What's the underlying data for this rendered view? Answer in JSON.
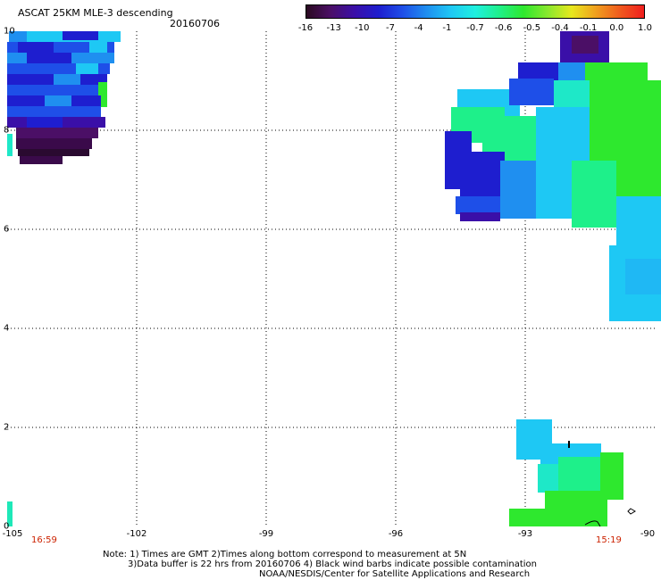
{
  "header": {
    "title": "ASCAT 25KM MLE-3 descending",
    "date": "20160706"
  },
  "colorbar": {
    "labels": [
      "-16",
      "-13",
      "-10",
      "-7",
      "-4",
      "-1",
      "-0.7",
      "-0.6",
      "-0.5",
      "-0.4",
      "-0.1",
      "0.0",
      "1.0"
    ],
    "colors": [
      "#2a0a20",
      "#4b0f66",
      "#3a0fa8",
      "#1e1ecf",
      "#1f4fe8",
      "#1f8ff0",
      "#1fc8f4",
      "#1ff0e0",
      "#1ff08a",
      "#2ee82e",
      "#88e82e",
      "#e8e81e",
      "#f0a01e",
      "#f05a1e",
      "#f01e1e"
    ]
  },
  "axes": {
    "y_labels": [
      "10",
      "8",
      "6",
      "4",
      "2",
      "0"
    ],
    "x_labels": [
      "-105",
      "-102",
      "-99",
      "-96",
      "-93",
      "-90"
    ],
    "lon_range": [
      -105,
      -90
    ],
    "lat_range": [
      0,
      10
    ]
  },
  "times": {
    "left": "16:59",
    "right": "15:19"
  },
  "notes": {
    "line1": "Note: 1) Times are GMT 2)Times along bottom correspond to measurement at 5N",
    "line2": "3)Data buffer is 22 hrs from 20160706 4) Black wind barbs indicate possible contamination",
    "line3": "NOAA/NESDIS/Center for Satellite Applications and Research"
  }
}
